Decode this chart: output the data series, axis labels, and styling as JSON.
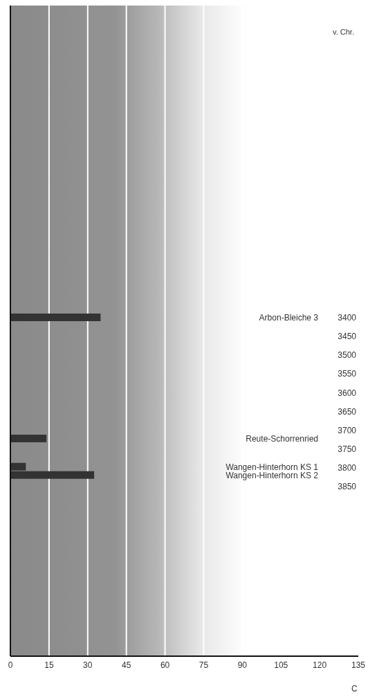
{
  "chart_data": {
    "type": "bar",
    "orientation": "horizontal",
    "xlabel": "C",
    "ylabel": "v. Chr.",
    "x": [
      3400,
      3722,
      3797,
      3819
    ],
    "values": [
      35,
      14,
      6,
      32.5
    ],
    "color": "#333333",
    "xlim": [
      0,
      135
    ],
    "xticks": [
      0,
      15,
      30,
      45,
      60,
      75,
      90,
      105,
      120,
      135
    ],
    "ylim": [
      4300,
      2570
    ],
    "yticks": [
      3400,
      3450,
      3500,
      3550,
      3600,
      3650,
      3700,
      3750,
      3800,
      3850
    ],
    "grid": "x",
    "annotations": [
      "Arbon-Bleiche 3",
      "Reute-Schorrenried",
      "Wangen-Hinterhorn KS 1",
      "Wangen-Hinterhorn KS 2"
    ]
  }
}
